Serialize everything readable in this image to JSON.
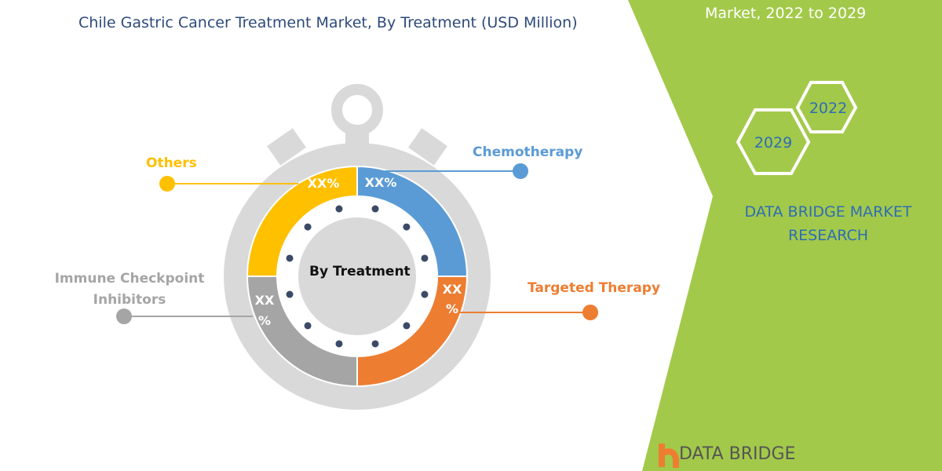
{
  "title": "Chile Gastric Cancer Treatment Market, By Treatment (USD Million)",
  "ribbon": "Market, 2022 to 2029",
  "center_label": "By Treatment",
  "segments": [
    {
      "name": "Chemotherapy",
      "value_label": "XX%",
      "color": "#5b9bd5"
    },
    {
      "name": "Targeted Therapy",
      "value_label": "XX %",
      "color": "#ed7d31"
    },
    {
      "name": "Immune Checkpoint Inhibitors",
      "value_label": "XX %",
      "color": "#a5a5a5"
    },
    {
      "name": "Others",
      "value_label": "XX%",
      "color": "#ffc000"
    }
  ],
  "hexagons": {
    "a": "2022",
    "b": "2029"
  },
  "brand": "DATA BRIDGE MARKET RESEARCH",
  "logo": "DATA BRIDGE",
  "accent": "#a3c94a"
}
